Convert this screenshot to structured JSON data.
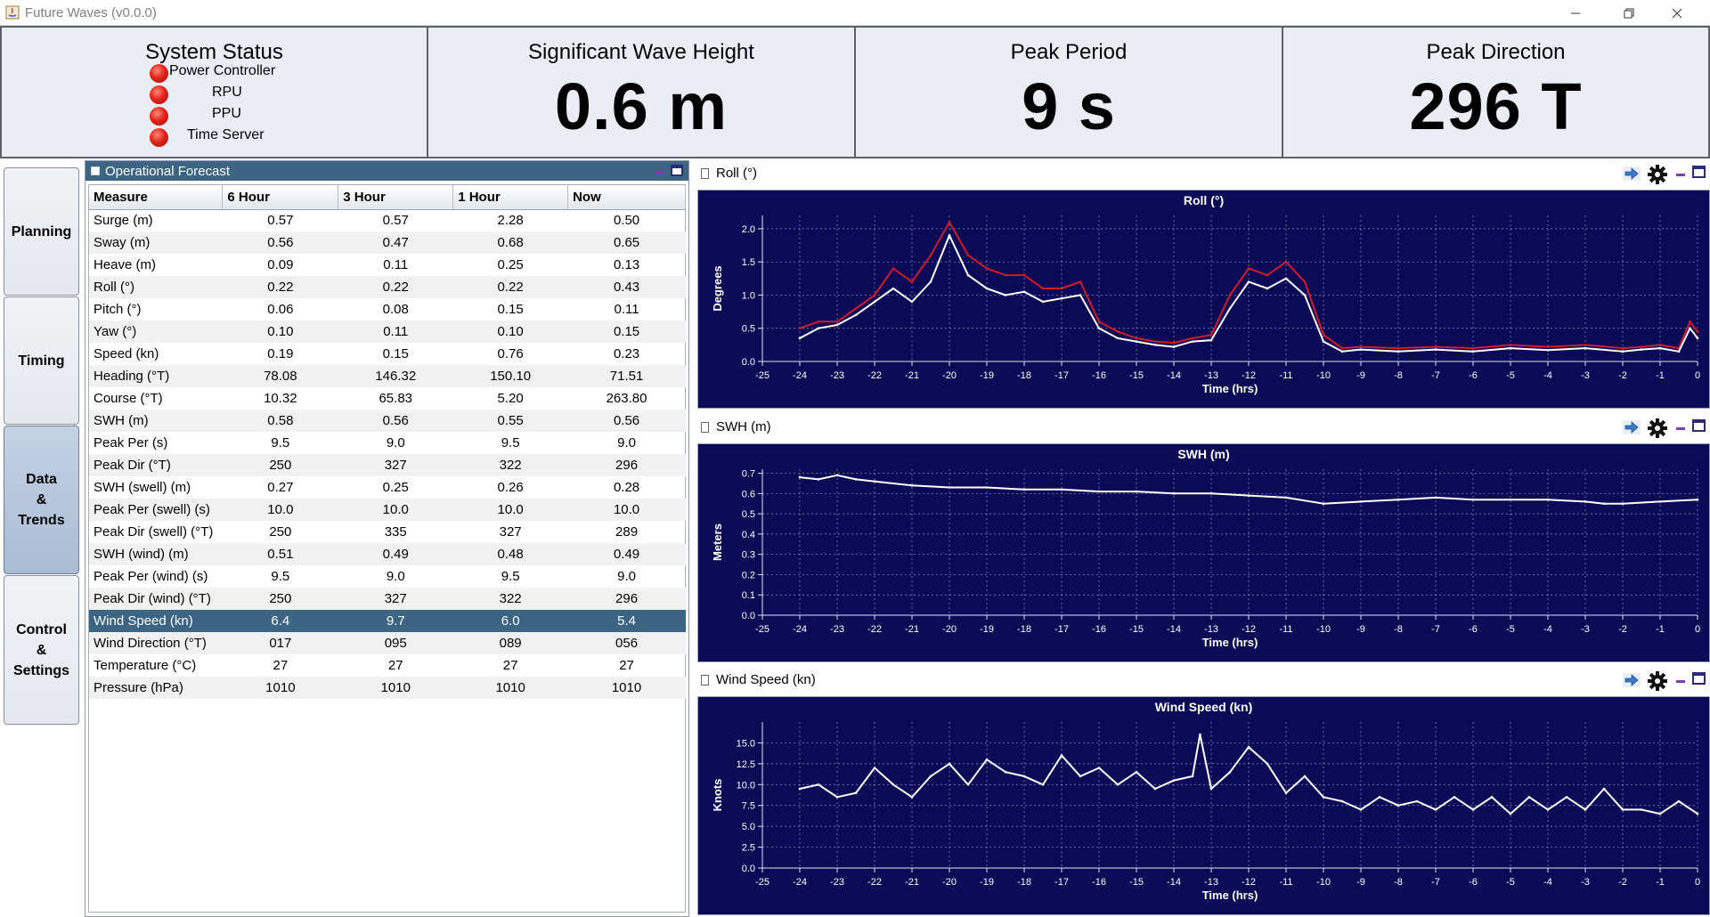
{
  "window": {
    "title": "Future Waves (v0.0.0)"
  },
  "status": {
    "title": "System Status",
    "items": [
      {
        "label": "Power Controller",
        "state": "red"
      },
      {
        "label": "RPU",
        "state": "red"
      },
      {
        "label": "PPU",
        "state": "red"
      },
      {
        "label": "Time Server",
        "state": "red"
      }
    ]
  },
  "metrics": [
    {
      "title": "Significant Wave Height",
      "value": "0.6 m"
    },
    {
      "title": "Peak Period",
      "value": "9 s"
    },
    {
      "title": "Peak Direction",
      "value": "296 T"
    }
  ],
  "nav": [
    {
      "label": "Planning",
      "active": false
    },
    {
      "label": "Timing",
      "active": false
    },
    {
      "label": "Data\n&\nTrends",
      "active": true
    },
    {
      "label": "Control\n&\nSettings",
      "active": false
    }
  ],
  "forecast": {
    "title": "Operational Forecast",
    "columns": [
      "Measure",
      "6 Hour",
      "3 Hour",
      "1 Hour",
      "Now"
    ],
    "selected_row": "Wind Speed (kn)",
    "rows": [
      [
        "Surge (m)",
        "0.57",
        "0.57",
        "2.28",
        "0.50"
      ],
      [
        "Sway (m)",
        "0.56",
        "0.47",
        "0.68",
        "0.65"
      ],
      [
        "Heave (m)",
        "0.09",
        "0.11",
        "0.25",
        "0.13"
      ],
      [
        "Roll (°)",
        "0.22",
        "0.22",
        "0.22",
        "0.43"
      ],
      [
        "Pitch (°)",
        "0.06",
        "0.08",
        "0.15",
        "0.11"
      ],
      [
        "Yaw (°)",
        "0.10",
        "0.11",
        "0.10",
        "0.15"
      ],
      [
        "Speed (kn)",
        "0.19",
        "0.15",
        "0.76",
        "0.23"
      ],
      [
        "Heading (°T)",
        "78.08",
        "146.32",
        "150.10",
        "71.51"
      ],
      [
        "Course (°T)",
        "10.32",
        "65.83",
        "5.20",
        "263.80"
      ],
      [
        "SWH (m)",
        "0.58",
        "0.56",
        "0.55",
        "0.56"
      ],
      [
        "Peak Per (s)",
        "9.5",
        "9.0",
        "9.5",
        "9.0"
      ],
      [
        "Peak Dir (°T)",
        "250",
        "327",
        "322",
        "296"
      ],
      [
        "SWH (swell) (m)",
        "0.27",
        "0.25",
        "0.26",
        "0.28"
      ],
      [
        "Peak Per (swell) (s)",
        "10.0",
        "10.0",
        "10.0",
        "10.0"
      ],
      [
        "Peak Dir (swell) (°T)",
        "250",
        "335",
        "327",
        "289"
      ],
      [
        "SWH (wind) (m)",
        "0.51",
        "0.49",
        "0.48",
        "0.49"
      ],
      [
        "Peak Per (wind) (s)",
        "9.5",
        "9.0",
        "9.5",
        "9.0"
      ],
      [
        "Peak Dir (wind) (°T)",
        "250",
        "327",
        "322",
        "296"
      ],
      [
        "Wind Speed (kn)",
        "6.4",
        "9.7",
        "6.0",
        "5.4"
      ],
      [
        "Wind Direction (°T)",
        "017",
        "095",
        "089",
        "056"
      ],
      [
        "Temperature (°C)",
        "27",
        "27",
        "27",
        "27"
      ],
      [
        "Pressure (hPa)",
        "1010",
        "1010",
        "1010",
        "1010"
      ]
    ]
  },
  "chart_data": [
    {
      "type": "line",
      "panel_title": "Roll (°)",
      "title": "Roll (°)",
      "xlabel": "Time (hrs)",
      "ylabel": "Degrees",
      "xlim": [
        -25,
        0
      ],
      "ylim": [
        0,
        2.2
      ],
      "xticks": [
        -25,
        -24,
        -23,
        -22,
        -21,
        -20,
        -19,
        -18,
        -17,
        -16,
        -15,
        -14,
        -13,
        -12,
        -11,
        -10,
        -9,
        -8,
        -7,
        -6,
        -5,
        -4,
        -3,
        -2,
        -1,
        0
      ],
      "yticks": [
        0.0,
        0.5,
        1.0,
        1.5,
        2.0
      ],
      "grid": true,
      "series": [
        {
          "color": "#d11a2a",
          "x": [
            -24,
            -23.5,
            -23,
            -22.5,
            -22,
            -21.5,
            -21,
            -20.5,
            -20,
            -19.5,
            -19,
            -18.5,
            -18,
            -17.5,
            -17,
            -16.5,
            -16,
            -15.5,
            -15,
            -14.5,
            -14,
            -13.5,
            -13,
            -12.5,
            -12,
            -11.5,
            -11,
            -10.5,
            -10,
            -9.5,
            -9,
            -8,
            -7,
            -6,
            -5,
            -4,
            -3,
            -2,
            -1.5,
            -1,
            -0.5,
            -0.2,
            0
          ],
          "y": [
            0.5,
            0.6,
            0.6,
            0.8,
            1.0,
            1.4,
            1.2,
            1.6,
            2.1,
            1.6,
            1.4,
            1.3,
            1.3,
            1.1,
            1.1,
            1.2,
            0.6,
            0.45,
            0.35,
            0.3,
            0.28,
            0.35,
            0.4,
            1.0,
            1.4,
            1.3,
            1.5,
            1.2,
            0.4,
            0.2,
            0.22,
            0.2,
            0.22,
            0.2,
            0.25,
            0.22,
            0.25,
            0.2,
            0.22,
            0.25,
            0.2,
            0.6,
            0.45
          ]
        },
        {
          "color": "#ffffff",
          "x": [
            -24,
            -23.5,
            -23,
            -22.5,
            -22,
            -21.5,
            -21,
            -20.5,
            -20,
            -19.5,
            -19,
            -18.5,
            -18,
            -17.5,
            -17,
            -16.5,
            -16,
            -15.5,
            -15,
            -14.5,
            -14,
            -13.5,
            -13,
            -12.5,
            -12,
            -11.5,
            -11,
            -10.5,
            -10,
            -9.5,
            -9,
            -8,
            -7,
            -6,
            -5,
            -4,
            -3,
            -2,
            -1.5,
            -1,
            -0.5,
            -0.2,
            0
          ],
          "y": [
            0.35,
            0.5,
            0.55,
            0.7,
            0.9,
            1.1,
            0.9,
            1.2,
            1.9,
            1.3,
            1.1,
            1.0,
            1.05,
            0.9,
            0.95,
            1.0,
            0.5,
            0.35,
            0.3,
            0.25,
            0.22,
            0.3,
            0.32,
            0.8,
            1.2,
            1.1,
            1.25,
            1.0,
            0.3,
            0.15,
            0.18,
            0.15,
            0.18,
            0.15,
            0.2,
            0.17,
            0.2,
            0.15,
            0.18,
            0.2,
            0.15,
            0.5,
            0.35
          ]
        }
      ]
    },
    {
      "type": "line",
      "panel_title": "SWH (m)",
      "title": "SWH (m)",
      "xlabel": "Time (hrs)",
      "ylabel": "Meters",
      "xlim": [
        -25,
        0
      ],
      "ylim": [
        0,
        0.72
      ],
      "xticks": [
        -25,
        -24,
        -23,
        -22,
        -21,
        -20,
        -19,
        -18,
        -17,
        -16,
        -15,
        -14,
        -13,
        -12,
        -11,
        -10,
        -9,
        -8,
        -7,
        -6,
        -5,
        -4,
        -3,
        -2,
        -1,
        0
      ],
      "yticks": [
        0.0,
        0.1,
        0.2,
        0.3,
        0.4,
        0.5,
        0.6,
        0.7
      ],
      "grid": true,
      "series": [
        {
          "color": "#ffffff",
          "x": [
            -24,
            -23.5,
            -23,
            -22.5,
            -22,
            -21,
            -20,
            -19,
            -18,
            -17,
            -16,
            -15,
            -14,
            -13,
            -12,
            -11,
            -10,
            -9,
            -8,
            -7,
            -6,
            -5,
            -4,
            -3,
            -2.5,
            -2,
            -1,
            0
          ],
          "y": [
            0.68,
            0.67,
            0.69,
            0.67,
            0.66,
            0.64,
            0.63,
            0.63,
            0.62,
            0.62,
            0.61,
            0.61,
            0.6,
            0.6,
            0.59,
            0.58,
            0.55,
            0.56,
            0.57,
            0.58,
            0.57,
            0.57,
            0.57,
            0.56,
            0.55,
            0.55,
            0.56,
            0.57
          ]
        }
      ]
    },
    {
      "type": "line",
      "panel_title": "Wind Speed (kn)",
      "title": "Wind Speed (kn)",
      "xlabel": "Time (hrs)",
      "ylabel": "Knots",
      "xlim": [
        -25,
        0
      ],
      "ylim": [
        0,
        17.5
      ],
      "xticks": [
        -25,
        -24,
        -23,
        -22,
        -21,
        -20,
        -19,
        -18,
        -17,
        -16,
        -15,
        -14,
        -13,
        -12,
        -11,
        -10,
        -9,
        -8,
        -7,
        -6,
        -5,
        -4,
        -3,
        -2,
        -1,
        0
      ],
      "yticks": [
        0.0,
        2.5,
        5.0,
        7.5,
        10.0,
        12.5,
        15.0
      ],
      "grid": true,
      "series": [
        {
          "color": "#ffffff",
          "x": [
            -24,
            -23.5,
            -23,
            -22.5,
            -22,
            -21.5,
            -21,
            -20.5,
            -20,
            -19.5,
            -19,
            -18.5,
            -18,
            -17.5,
            -17,
            -16.5,
            -16,
            -15.5,
            -15,
            -14.5,
            -14,
            -13.5,
            -13.3,
            -13,
            -12.5,
            -12,
            -11.5,
            -11,
            -10.5,
            -10,
            -9.5,
            -9,
            -8.5,
            -8,
            -7.5,
            -7,
            -6.5,
            -6,
            -5.5,
            -5,
            -4.5,
            -4,
            -3.5,
            -3,
            -2.5,
            -2,
            -1.5,
            -1,
            -0.5,
            0
          ],
          "y": [
            9.5,
            10.0,
            8.5,
            9.0,
            12.0,
            10.0,
            8.5,
            11.0,
            12.5,
            10.0,
            13.0,
            11.5,
            11.0,
            10.0,
            13.5,
            11.0,
            12.0,
            10.0,
            11.5,
            9.5,
            10.5,
            11.0,
            16.0,
            9.5,
            11.5,
            14.5,
            12.5,
            9.0,
            11.0,
            8.5,
            8.0,
            7.0,
            8.5,
            7.5,
            8.0,
            7.0,
            8.5,
            7.0,
            8.5,
            6.5,
            8.5,
            7.0,
            8.5,
            7.0,
            9.5,
            7.0,
            7.0,
            6.5,
            8.0,
            6.5
          ]
        }
      ]
    }
  ]
}
